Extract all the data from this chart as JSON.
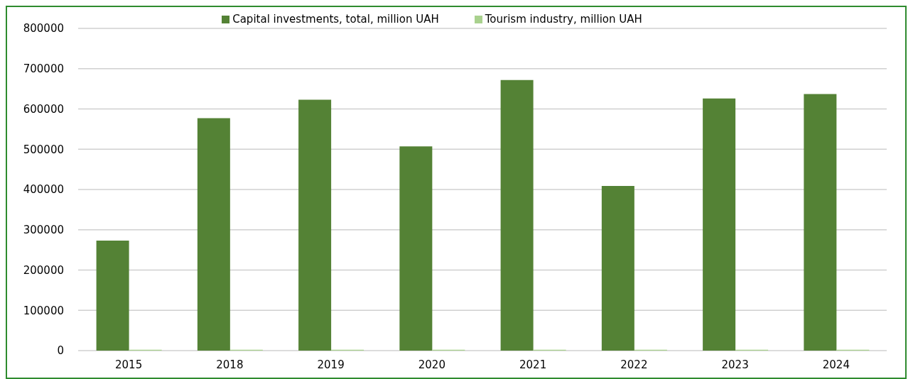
{
  "chart_data": {
    "type": "bar",
    "categories": [
      "2015",
      "2018",
      "2019",
      "2020",
      "2021",
      "2022",
      "2023",
      "2024"
    ],
    "series": [
      {
        "name": "Capital investments, total, million UAH",
        "color": "#548235",
        "values": [
          273000,
          577000,
          623000,
          507000,
          672000,
          409000,
          626000,
          637000
        ]
      },
      {
        "name": "Tourism industry, million UAH",
        "color": "#a9d18e",
        "values": [
          2000,
          2000,
          2000,
          2000,
          2000,
          2000,
          2000,
          2000
        ]
      }
    ],
    "ylim": [
      0,
      800000
    ],
    "yticks": [
      0,
      100000,
      200000,
      300000,
      400000,
      500000,
      600000,
      700000,
      800000
    ],
    "grid": "y",
    "legend": "top"
  }
}
